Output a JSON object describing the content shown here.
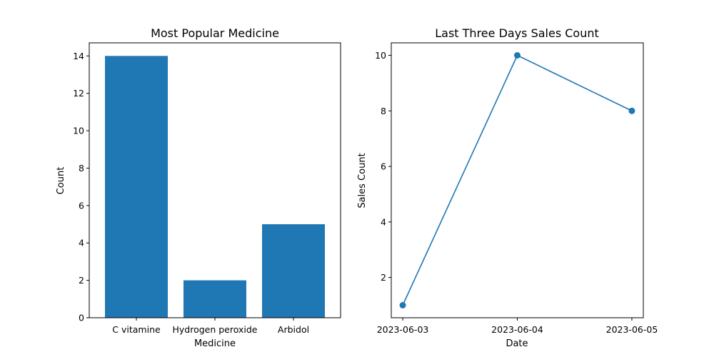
{
  "chart_data": [
    {
      "type": "bar",
      "title": "Most Popular Medicine",
      "xlabel": "Medicine",
      "ylabel": "Count",
      "categories": [
        "C vitamine",
        "Hydrogen peroxide",
        "Arbidol"
      ],
      "values": [
        14,
        2,
        5
      ],
      "ylim": [
        0,
        14.7
      ],
      "yticks": [
        0,
        2,
        4,
        6,
        8,
        10,
        12,
        14
      ],
      "color": "#1f77b4",
      "grid": false
    },
    {
      "type": "line",
      "title": "Last Three Days Sales Count",
      "xlabel": "Date",
      "ylabel": "Sales Count",
      "x": [
        "2023-06-03",
        "2023-06-04",
        "2023-06-05"
      ],
      "values": [
        1,
        10,
        8
      ],
      "ylim": [
        0.55,
        10.45
      ],
      "yticks": [
        2,
        4,
        6,
        8,
        10
      ],
      "marker": "circle",
      "color": "#1f77b4",
      "grid": false
    }
  ]
}
